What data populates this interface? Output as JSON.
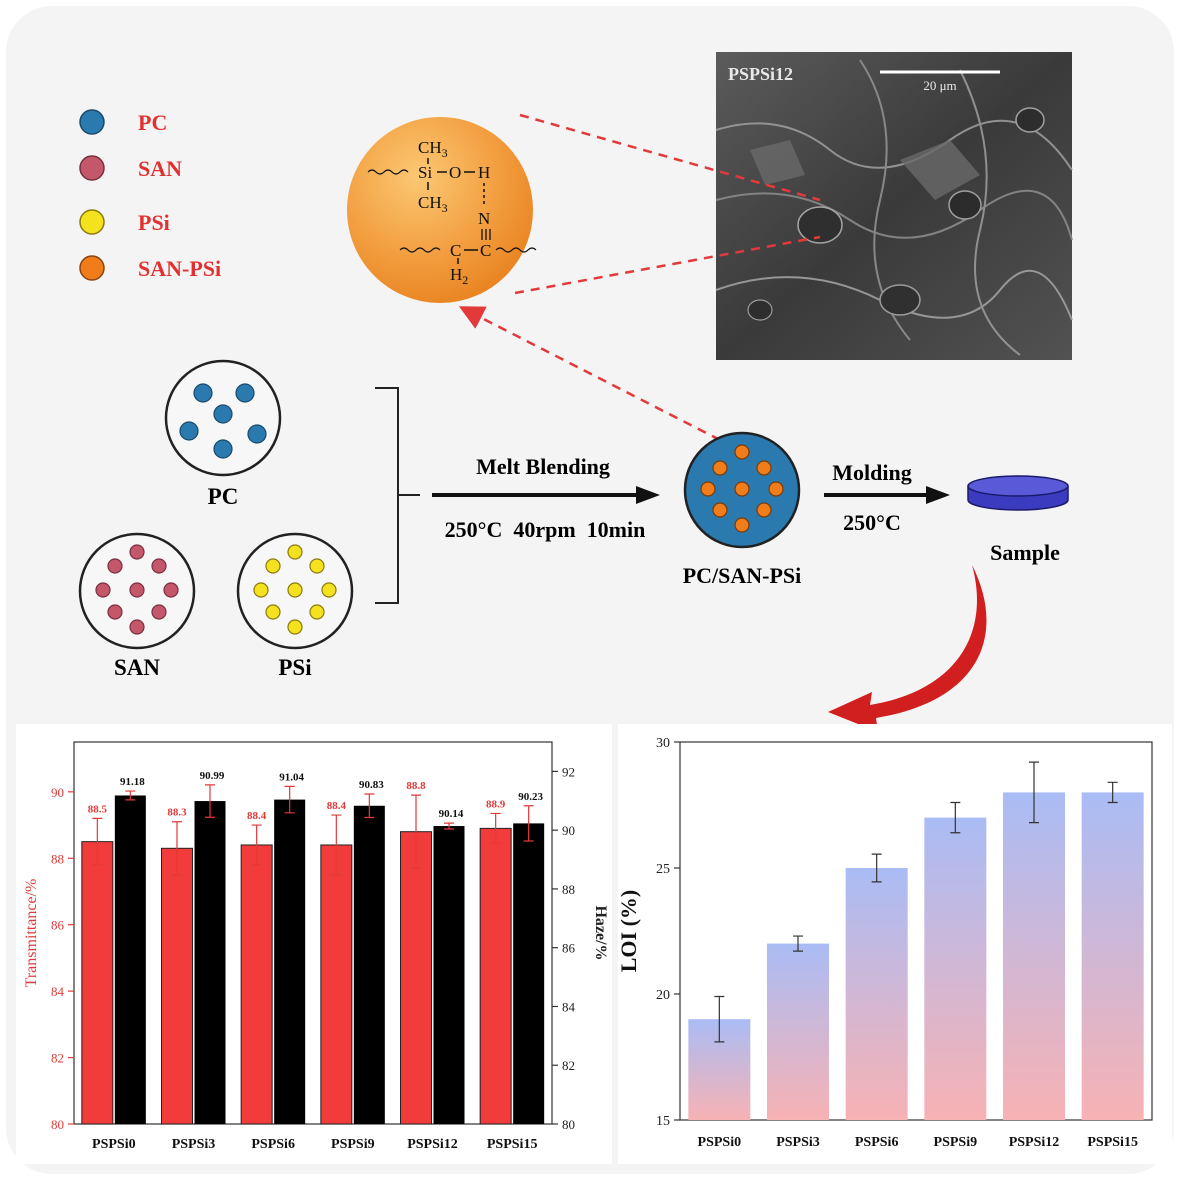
{
  "legend": [
    {
      "label": "PC",
      "color": "#2a7ab0"
    },
    {
      "label": "SAN",
      "color": "#c4576a"
    },
    {
      "label": "PSi",
      "color": "#f5e21e"
    },
    {
      "label": "SAN-PSi",
      "color": "#f07d1a"
    }
  ],
  "molecule": {
    "ch3_top": "CH",
    "ch3_top_sub": "3",
    "si": "Si",
    "o": "O",
    "h": "H",
    "ch3_bottom": "CH",
    "ch3_bottom_sub": "3",
    "n": "N",
    "c_left": "C",
    "c_right": "C",
    "h2": "H",
    "h2_sub": "2"
  },
  "sem": {
    "label": "PSPSi12",
    "scale": "20 μm"
  },
  "components": {
    "pc": "PC",
    "san": "SAN",
    "psi": "PSi"
  },
  "process": {
    "step1_title": "Melt Blending",
    "step1_params": "250°C  40rpm  10min",
    "blend_label": "PC/SAN-PSi",
    "step2_title": "Molding",
    "step2_params": "250°C",
    "sample_label": "Sample"
  },
  "chart_data": [
    {
      "type": "bar",
      "categories": [
        "PSPSi0",
        "PSPSi3",
        "PSPSi6",
        "PSPSi9",
        "PSPSi12",
        "PSPSi15"
      ],
      "series": [
        {
          "values": [
            88.5,
            88.3,
            88.4,
            88.4,
            88.8,
            88.9
          ],
          "errors": [
            0.7,
            0.8,
            0.6,
            0.9,
            1.1,
            0.45
          ],
          "color": "#f23b3b",
          "axis": "left"
        },
        {
          "values": [
            91.18,
            90.99,
            91.04,
            90.83,
            90.14,
            90.23
          ],
          "errors": [
            0.15,
            0.55,
            0.45,
            0.4,
            0.1,
            0.6
          ],
          "color": "#000000",
          "axis": "right"
        }
      ],
      "left_axis": {
        "label": "Transmittance/%",
        "ylim": [
          80,
          91.5
        ],
        "ticks": [
          "80",
          "82",
          "84",
          "86",
          "88",
          "90"
        ]
      },
      "right_axis": {
        "label": "Haze/%",
        "ylim": [
          80,
          93
        ],
        "ticks": [
          "80",
          "82",
          "84",
          "86",
          "88",
          "90",
          "92"
        ]
      },
      "data_labels_left": [
        "88.5",
        "88.3",
        "88.4",
        "88.4",
        "88.8",
        "88.9"
      ],
      "data_labels_right": [
        "91.18",
        "90.99",
        "91.04",
        "90.83",
        "90.14",
        "90.23"
      ]
    },
    {
      "type": "bar",
      "categories": [
        "PSPSi0",
        "PSPSi3",
        "PSPSi6",
        "PSPSi9",
        "PSPSi12",
        "PSPSi15"
      ],
      "values": [
        19,
        22,
        25,
        27,
        28,
        28
      ],
      "errors": [
        0.9,
        0.3,
        0.55,
        0.6,
        1.2,
        0.4
      ],
      "ylabel": "LOI (%)",
      "ylim": [
        15,
        30
      ],
      "yticks": [
        "15",
        "20",
        "25",
        "30"
      ],
      "gradient": [
        "#aabcf5",
        "#f7b2b4"
      ]
    }
  ]
}
